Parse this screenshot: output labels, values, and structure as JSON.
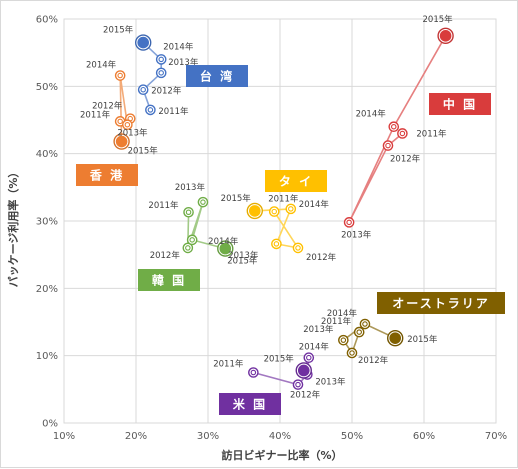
{
  "chart_data": {
    "type": "scatter",
    "xlabel": "訪日ビギナー比率（%）",
    "ylabel": "パッケージ利用率（%）",
    "xlim": [
      10,
      70
    ],
    "ylim": [
      0,
      60
    ],
    "x_ticks": [
      "10%",
      "20%",
      "30%",
      "40%",
      "50%",
      "60%",
      "70%"
    ],
    "y_ticks": [
      "0%",
      "10%",
      "20%",
      "30%",
      "40%",
      "50%",
      "60%"
    ],
    "grid": true,
    "series": [
      {
        "name": "台 湾",
        "color": "#4472c4",
        "points": [
          {
            "label": "2011年",
            "x": 22.0,
            "y": 46.5
          },
          {
            "label": "2012年",
            "x": 21.0,
            "y": 49.5
          },
          {
            "label": "2013年",
            "x": 23.5,
            "y": 52.0
          },
          {
            "label": "2014年",
            "x": 23.5,
            "y": 54.0
          },
          {
            "label": "2015年",
            "x": 21.0,
            "y": 56.5
          }
        ]
      },
      {
        "name": "香 港",
        "color": "#ed7d31",
        "points": [
          {
            "label": "2011年",
            "x": 17.8,
            "y": 44.8
          },
          {
            "label": "2012年",
            "x": 19.2,
            "y": 45.2
          },
          {
            "label": "2013年",
            "x": 18.8,
            "y": 44.3
          },
          {
            "label": "2014年",
            "x": 17.8,
            "y": 51.6
          },
          {
            "label": "2015年",
            "x": 18.0,
            "y": 41.8
          }
        ]
      },
      {
        "name": "中 国",
        "color": "#d93c3c",
        "points": [
          {
            "label": "2011年",
            "x": 57.0,
            "y": 43.0
          },
          {
            "label": "2012年",
            "x": 55.0,
            "y": 41.2
          },
          {
            "label": "2013年",
            "x": 49.6,
            "y": 29.8
          },
          {
            "label": "2014年",
            "x": 55.8,
            "y": 44.0
          },
          {
            "label": "2015年",
            "x": 63.0,
            "y": 57.5
          }
        ]
      },
      {
        "name": "タ イ",
        "color": "#ffc000",
        "points": [
          {
            "label": "2011年",
            "x": 39.2,
            "y": 31.4
          },
          {
            "label": "2012年",
            "x": 42.5,
            "y": 26.0
          },
          {
            "label": "2013年",
            "x": 39.5,
            "y": 26.6
          },
          {
            "label": "2014年",
            "x": 41.5,
            "y": 31.8
          },
          {
            "label": "2015年",
            "x": 36.5,
            "y": 31.5
          }
        ]
      },
      {
        "name": "韓 国",
        "color": "#70ad47",
        "points": [
          {
            "label": "2011年",
            "x": 27.3,
            "y": 31.3
          },
          {
            "label": "2012年",
            "x": 27.2,
            "y": 26.0
          },
          {
            "label": "2013年",
            "x": 29.3,
            "y": 32.8
          },
          {
            "label": "2014年",
            "x": 27.8,
            "y": 27.2
          },
          {
            "label": "2015年",
            "x": 32.4,
            "y": 25.9
          }
        ]
      },
      {
        "name": "米 国",
        "color": "#7030a0",
        "points": [
          {
            "label": "2011年",
            "x": 36.3,
            "y": 7.5
          },
          {
            "label": "2012年",
            "x": 42.5,
            "y": 5.7
          },
          {
            "label": "2013年",
            "x": 43.8,
            "y": 7.2
          },
          {
            "label": "2014年",
            "x": 44.0,
            "y": 9.7
          },
          {
            "label": "2015年",
            "x": 43.3,
            "y": 7.8
          }
        ]
      },
      {
        "name": "オーストラリア",
        "color": "#806000",
        "points": [
          {
            "label": "2011年",
            "x": 51.0,
            "y": 13.5
          },
          {
            "label": "2012年",
            "x": 50.0,
            "y": 10.4
          },
          {
            "label": "2013年",
            "x": 48.8,
            "y": 12.3
          },
          {
            "label": "2014年",
            "x": 51.8,
            "y": 14.7
          },
          {
            "label": "2015年",
            "x": 56.0,
            "y": 12.6
          }
        ]
      }
    ]
  }
}
